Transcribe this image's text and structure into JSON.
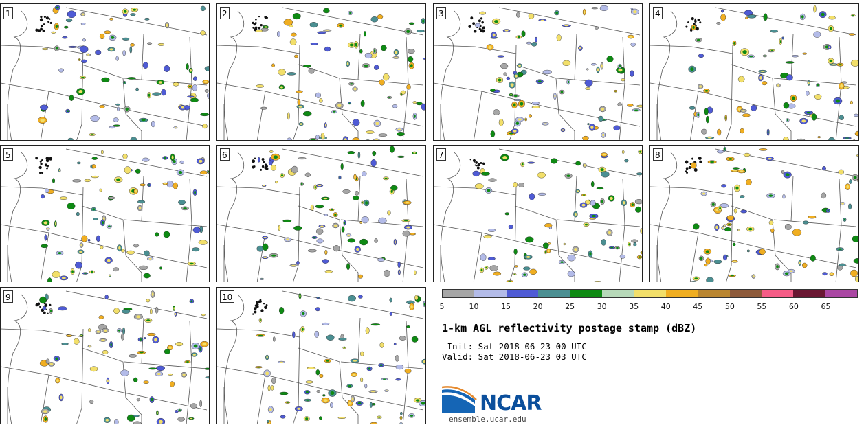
{
  "panels": [
    {
      "label": "1"
    },
    {
      "label": "2"
    },
    {
      "label": "3"
    },
    {
      "label": "4"
    },
    {
      "label": "5"
    },
    {
      "label": "6"
    },
    {
      "label": "7"
    },
    {
      "label": "8"
    },
    {
      "label": "9"
    },
    {
      "label": "10"
    }
  ],
  "colorbar": {
    "ticks": [
      "5",
      "10",
      "15",
      "20",
      "25",
      "30",
      "35",
      "40",
      "45",
      "50",
      "55",
      "60",
      "65"
    ],
    "colors": [
      "#a6a6a6",
      "#b3bbe8",
      "#4f5bd5",
      "#4b8f92",
      "#0e8a13",
      "#b7d9b9",
      "#f2df6a",
      "#f0ae21",
      "#ba8630",
      "#8d5a3a",
      "#f55c86",
      "#6a1732",
      "#aa47a3"
    ]
  },
  "info": {
    "title": "1-km AGL reflectivity postage stamp (dBZ)",
    "init": " Init: Sat 2018-06-23 00 UTC",
    "valid": "Valid: Sat 2018-06-23 03 UTC"
  },
  "logo": {
    "name": "NCAR",
    "url": "ensemble.ucar.edu"
  }
}
